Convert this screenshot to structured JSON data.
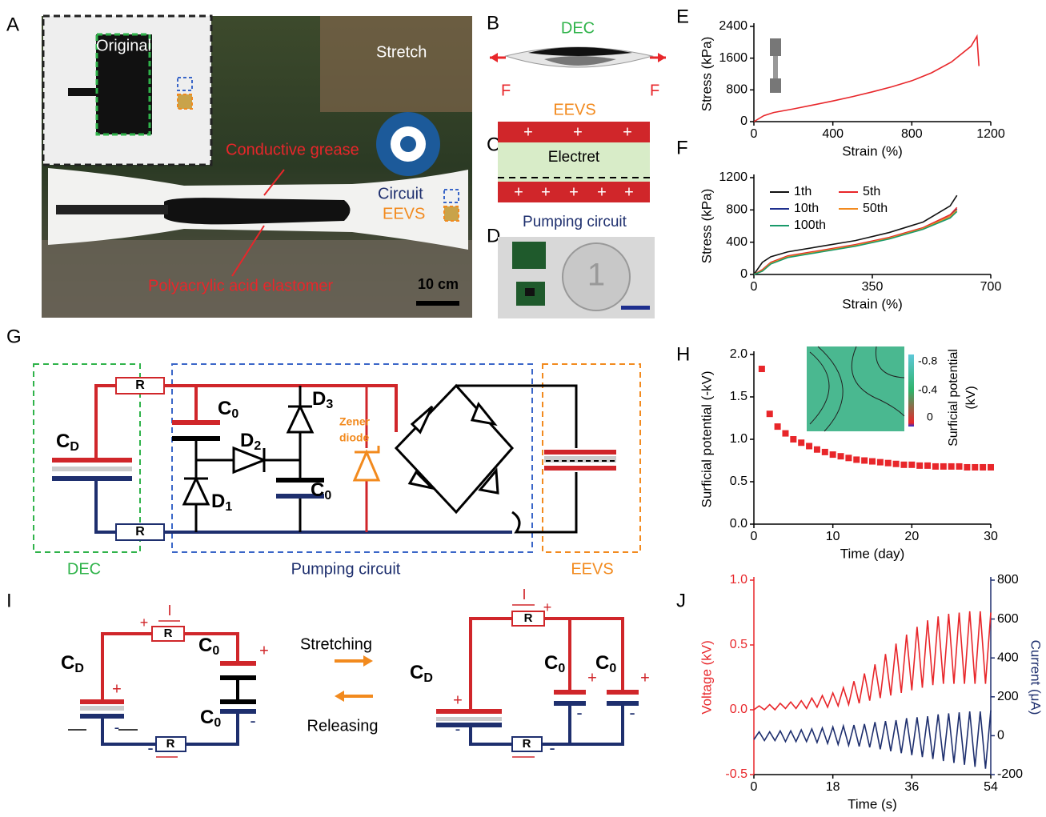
{
  "figure": {
    "panel_labels": [
      "A",
      "B",
      "C",
      "D",
      "E",
      "F",
      "G",
      "H",
      "I",
      "J"
    ],
    "a": {
      "original": "Original",
      "stretch": "Stretch",
      "conductive_grease": "Conductive grease",
      "circuit": "Circuit",
      "eevs": "EEVS",
      "elastomer": "Polyacrylic acid elastomer",
      "scale": "10 cm"
    },
    "b": {
      "dec": "DEC",
      "force_left": "F",
      "force_right": "F"
    },
    "c": {
      "eevs": "EEVS",
      "electret": "Electret",
      "top_charges": [
        "+",
        "+",
        "+"
      ],
      "bottom_charges": [
        "+",
        "+",
        "+",
        "+",
        "+"
      ]
    },
    "d": {
      "title": "Pumping circuit"
    },
    "g": {
      "resistor_top": "R",
      "resistor_bottom": "R",
      "cd": [
        "C",
        "D"
      ],
      "c0_top": [
        "C",
        "0"
      ],
      "c0_bottom": [
        "C",
        "0"
      ],
      "d1": [
        "D",
        "1"
      ],
      "d2": [
        "D",
        "2"
      ],
      "d3": [
        "D",
        "3"
      ],
      "zener": [
        "Zener",
        "diode"
      ],
      "dec": "DEC",
      "pumping": "Pumping circuit",
      "eevs": "EEVS"
    },
    "h_inset": {
      "ticks": [
        "-0.8",
        "-0.4",
        "0"
      ],
      "label": [
        "Surficial potential",
        "(kV)"
      ]
    },
    "i": {
      "left": {
        "current": "I",
        "current_sign": "+",
        "resistor_top": "R",
        "resistor_bottom": "R",
        "cd": [
          "C",
          "D"
        ],
        "cd_plus": "+",
        "cd_minus": "-",
        "c0_top": [
          "C",
          "0"
        ],
        "c0_top_plus": "+",
        "c0_bottom": [
          "C",
          "0"
        ],
        "c0_bottom_minus": "-",
        "bottom_minus": "-"
      },
      "stretching": "Stretching",
      "releasing": "Releasing",
      "right": {
        "current": "I",
        "current_sign": "+",
        "resistor_top": "R",
        "resistor_bottom": "R",
        "cd": [
          "C",
          "D"
        ],
        "cd_plus": "+",
        "cd_minus": "-",
        "c0_a": [
          "C",
          "0"
        ],
        "c0_a_plus": "+",
        "c0_a_minus": "-",
        "c0_b": [
          "C",
          "0"
        ],
        "c0_b_plus": "+",
        "c0_b_minus": "-",
        "bottom_minus": "-"
      }
    }
  },
  "chart_data": [
    {
      "type": "line",
      "xlabel": "Strain (%)",
      "ylabel": "Stress (kPa)",
      "x": [
        0,
        50,
        100,
        200,
        300,
        400,
        500,
        600,
        700,
        800,
        900,
        1000,
        1100,
        1130,
        1140
      ],
      "series": [
        {
          "color": "#e8262a",
          "values": [
            0,
            150,
            230,
            320,
            420,
            520,
            630,
            750,
            880,
            1030,
            1230,
            1500,
            1900,
            2150,
            1400
          ]
        }
      ],
      "xlim": [
        0,
        1200
      ],
      "ylim": [
        0,
        2400
      ],
      "xticks": [
        0,
        400,
        800,
        1200
      ],
      "yticks": [
        0,
        800,
        1600,
        2400
      ]
    },
    {
      "type": "line",
      "xlabel": "Strain (%)",
      "ylabel": "Stress (kPa)",
      "legend": "upper left",
      "x": [
        0,
        25,
        50,
        100,
        200,
        300,
        400,
        500,
        580,
        600
      ],
      "series": [
        {
          "name": "1th",
          "color": "#111111",
          "values": [
            0,
            150,
            220,
            280,
            350,
            420,
            520,
            650,
            850,
            980
          ]
        },
        {
          "name": "5th",
          "color": "#e8262a",
          "values": [
            0,
            60,
            150,
            230,
            300,
            370,
            460,
            580,
            740,
            830
          ]
        },
        {
          "name": "10th",
          "color": "#1e2f8e",
          "values": [
            0,
            50,
            140,
            220,
            290,
            360,
            450,
            570,
            720,
            810
          ]
        },
        {
          "name": "50th",
          "color": "#f28a1e",
          "values": [
            0,
            50,
            140,
            220,
            290,
            360,
            450,
            570,
            720,
            800
          ]
        },
        {
          "name": "100th",
          "color": "#1a9a6a",
          "values": [
            0,
            40,
            130,
            210,
            280,
            350,
            440,
            560,
            700,
            780
          ]
        }
      ],
      "xlim": [
        0,
        700
      ],
      "ylim": [
        0,
        1200
      ],
      "xticks": [
        0,
        350,
        700
      ],
      "yticks": [
        0,
        400,
        800,
        1200
      ]
    },
    {
      "type": "scatter",
      "xlabel": "Time (day)",
      "ylabel": "Surficial potential (-kV)",
      "x": [
        1,
        2,
        3,
        4,
        5,
        6,
        7,
        8,
        9,
        10,
        11,
        12,
        13,
        14,
        15,
        16,
        17,
        18,
        19,
        20,
        21,
        22,
        23,
        24,
        25,
        26,
        27,
        28,
        29,
        30
      ],
      "series": [
        {
          "color": "#e8262a",
          "values": [
            1.83,
            1.3,
            1.15,
            1.07,
            1.0,
            0.96,
            0.92,
            0.88,
            0.85,
            0.82,
            0.8,
            0.78,
            0.76,
            0.75,
            0.74,
            0.73,
            0.72,
            0.71,
            0.7,
            0.7,
            0.69,
            0.69,
            0.68,
            0.68,
            0.68,
            0.68,
            0.67,
            0.67,
            0.67,
            0.67
          ]
        }
      ],
      "xlim": [
        0,
        30
      ],
      "ylim": [
        0,
        2
      ],
      "xticks": [
        0,
        10,
        20,
        30
      ],
      "yticks": [
        {
          "value": 0,
          "label": "0.0"
        },
        0.5,
        {
          "value": 1,
          "label": "1.0"
        },
        1.5,
        {
          "value": 2,
          "label": "2.0"
        }
      ]
    },
    {
      "type": "line",
      "xlabel": "Time (s)",
      "ylabel": "Voltage (kV)",
      "y2label": "Current (μA)",
      "x": [
        0,
        1.2,
        2.4,
        3.6,
        4.8,
        6,
        7.2,
        8.4,
        9.6,
        10.8,
        12,
        13.2,
        14.4,
        15.6,
        16.8,
        18,
        19.2,
        20.4,
        21.6,
        22.8,
        24,
        25.2,
        26.4,
        27.6,
        28.8,
        30,
        31.2,
        32.4,
        33.6,
        34.8,
        36,
        37.2,
        38.4,
        39.6,
        40.8,
        42,
        43.2,
        44.4,
        45.6,
        46.8,
        48,
        49.2,
        50.4,
        51.6,
        52.8,
        54
      ],
      "series": [
        {
          "color": "#e8262a",
          "values": [
            0,
            0.03,
            0,
            0.04,
            0,
            0.05,
            0.01,
            0.06,
            0.01,
            0.07,
            0.01,
            0.09,
            0.02,
            0.11,
            0.02,
            0.13,
            0.03,
            0.17,
            0.04,
            0.22,
            0.05,
            0.28,
            0.07,
            0.35,
            0.09,
            0.43,
            0.11,
            0.51,
            0.13,
            0.58,
            0.15,
            0.64,
            0.17,
            0.69,
            0.19,
            0.72,
            0.2,
            0.74,
            0.2,
            0.75,
            0.2,
            0.76,
            0.2,
            0.76,
            0.2,
            0.75
          ]
        },
        {
          "color": "#1e2f6e",
          "axis": "y2",
          "values": [
            -20,
            20,
            -25,
            20,
            -25,
            25,
            -30,
            25,
            -30,
            30,
            -30,
            35,
            -35,
            40,
            -40,
            45,
            -45,
            50,
            -50,
            55,
            -55,
            60,
            -60,
            70,
            -70,
            75,
            -80,
            80,
            -90,
            90,
            -100,
            95,
            -110,
            100,
            -120,
            110,
            -130,
            115,
            -140,
            120,
            -150,
            125,
            -160,
            125,
            -170,
            130
          ]
        }
      ],
      "xlim": [
        0,
        54
      ],
      "ylim": [
        -0.5,
        1
      ],
      "xticks": [
        0,
        18,
        36,
        54
      ],
      "yticks": [
        -0.5,
        {
          "value": 0,
          "label": "0.0"
        },
        0.5,
        {
          "value": 1,
          "label": "1.0"
        }
      ],
      "y2lim": [
        -200,
        800
      ],
      "y2ticks": [
        -200,
        0,
        200,
        400,
        600,
        800
      ]
    }
  ]
}
